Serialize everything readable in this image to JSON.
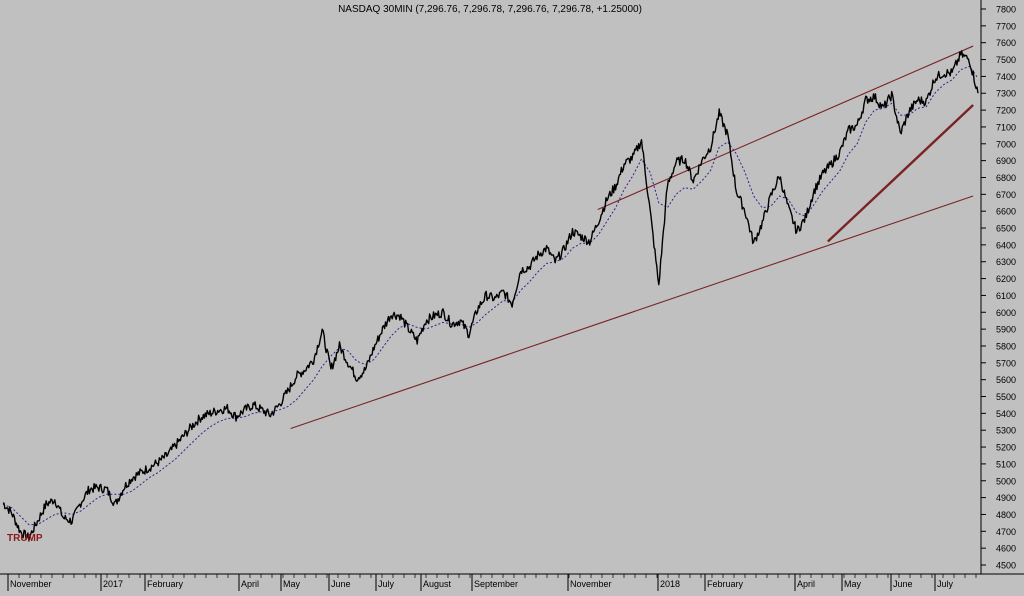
{
  "chart_data": {
    "type": "line",
    "title": "NASDAQ 30MIN (7,296.76, 7,296.78, 7,296.76, 7,296.78, +1.25000)",
    "annotation": "TRUMP",
    "ylim": [
      4450,
      7850
    ],
    "yticks": [
      4500,
      4600,
      4700,
      4800,
      4900,
      5000,
      5100,
      5200,
      5300,
      5400,
      5500,
      5600,
      5700,
      5800,
      5900,
      6000,
      6100,
      6200,
      6300,
      6400,
      6500,
      6600,
      6700,
      6800,
      6900,
      7000,
      7100,
      7200,
      7300,
      7400,
      7500,
      7600,
      7700,
      7800
    ],
    "x_axis_labels": [
      "November",
      "2017",
      "February",
      "April",
      "May",
      "June",
      "July",
      "August",
      "September",
      "November",
      "2018",
      "February",
      "April",
      "May",
      "June",
      "July"
    ],
    "grid": false,
    "colors": {
      "background": "#c0c0c0",
      "price": "#000000",
      "average": "#3a1e8c",
      "trendline": "#7a2323",
      "annotation": "#8b1a1a"
    },
    "series": [
      {
        "values": [
          4870,
          4810,
          4700,
          4660,
          4760,
          4860,
          4890,
          4780,
          4760,
          4870,
          4950,
          4960,
          4950,
          4860,
          4960,
          5020,
          5050,
          5080,
          5110,
          5150,
          5210,
          5270,
          5330,
          5380,
          5400,
          5420,
          5430,
          5380,
          5420,
          5450,
          5420,
          5390,
          5450,
          5530,
          5620,
          5660,
          5720,
          5890,
          5660,
          5800,
          5700,
          5610,
          5660,
          5790,
          5900,
          5990,
          5980,
          5900,
          5830,
          5950,
          5980,
          6000,
          5930,
          5950,
          5870,
          6020,
          6100,
          6080,
          6120,
          6050,
          6250,
          6270,
          6340,
          6380,
          6300,
          6370,
          6480,
          6450,
          6420,
          6540,
          6670,
          6750,
          6880,
          6920,
          7020,
          6600,
          6160,
          6750,
          6890,
          6910,
          6780,
          6900,
          6980,
          7180,
          7050,
          6720,
          6600,
          6410,
          6530,
          6690,
          6810,
          6620,
          6480,
          6560,
          6720,
          6820,
          6880,
          6950,
          7080,
          7110,
          7260,
          7280,
          7210,
          7290,
          7060,
          7190,
          7260,
          7250,
          7390,
          7420,
          7420,
          7530,
          7500,
          7300
        ]
      },
      {
        "values": [
          4860,
          4840,
          4790,
          4740,
          4740,
          4770,
          4800,
          4810,
          4800,
          4820,
          4860,
          4900,
          4920,
          4920,
          4920,
          4940,
          4980,
          5020,
          5050,
          5090,
          5130,
          5180,
          5230,
          5280,
          5320,
          5350,
          5370,
          5370,
          5380,
          5400,
          5410,
          5410,
          5420,
          5440,
          5480,
          5540,
          5600,
          5680,
          5740,
          5790,
          5770,
          5710,
          5690,
          5720,
          5790,
          5860,
          5910,
          5930,
          5910,
          5900,
          5920,
          5940,
          5930,
          5930,
          5910,
          5940,
          5990,
          6030,
          6070,
          6060,
          6130,
          6180,
          6240,
          6290,
          6300,
          6320,
          6380,
          6410,
          6410,
          6460,
          6540,
          6620,
          6730,
          6810,
          6910,
          6830,
          6650,
          6620,
          6700,
          6740,
          6730,
          6780,
          6840,
          6980,
          7010,
          6940,
          6830,
          6690,
          6620,
          6630,
          6690,
          6670,
          6590,
          6570,
          6640,
          6720,
          6780,
          6840,
          6940,
          7000,
          7130,
          7200,
          7210,
          7240,
          7170,
          7170,
          7210,
          7220,
          7300,
          7350,
          7380,
          7440,
          7460,
          7390
        ]
      }
    ],
    "trendlines": [
      {
        "x1": 0.295,
        "y1": 5310,
        "x2": 0.995,
        "y2": 6690
      },
      {
        "x1": 0.61,
        "y1": 6610,
        "x2": 0.995,
        "y2": 7580
      },
      {
        "x1": 0.846,
        "y1": 6420,
        "x2": 0.995,
        "y2": 7230
      }
    ]
  }
}
